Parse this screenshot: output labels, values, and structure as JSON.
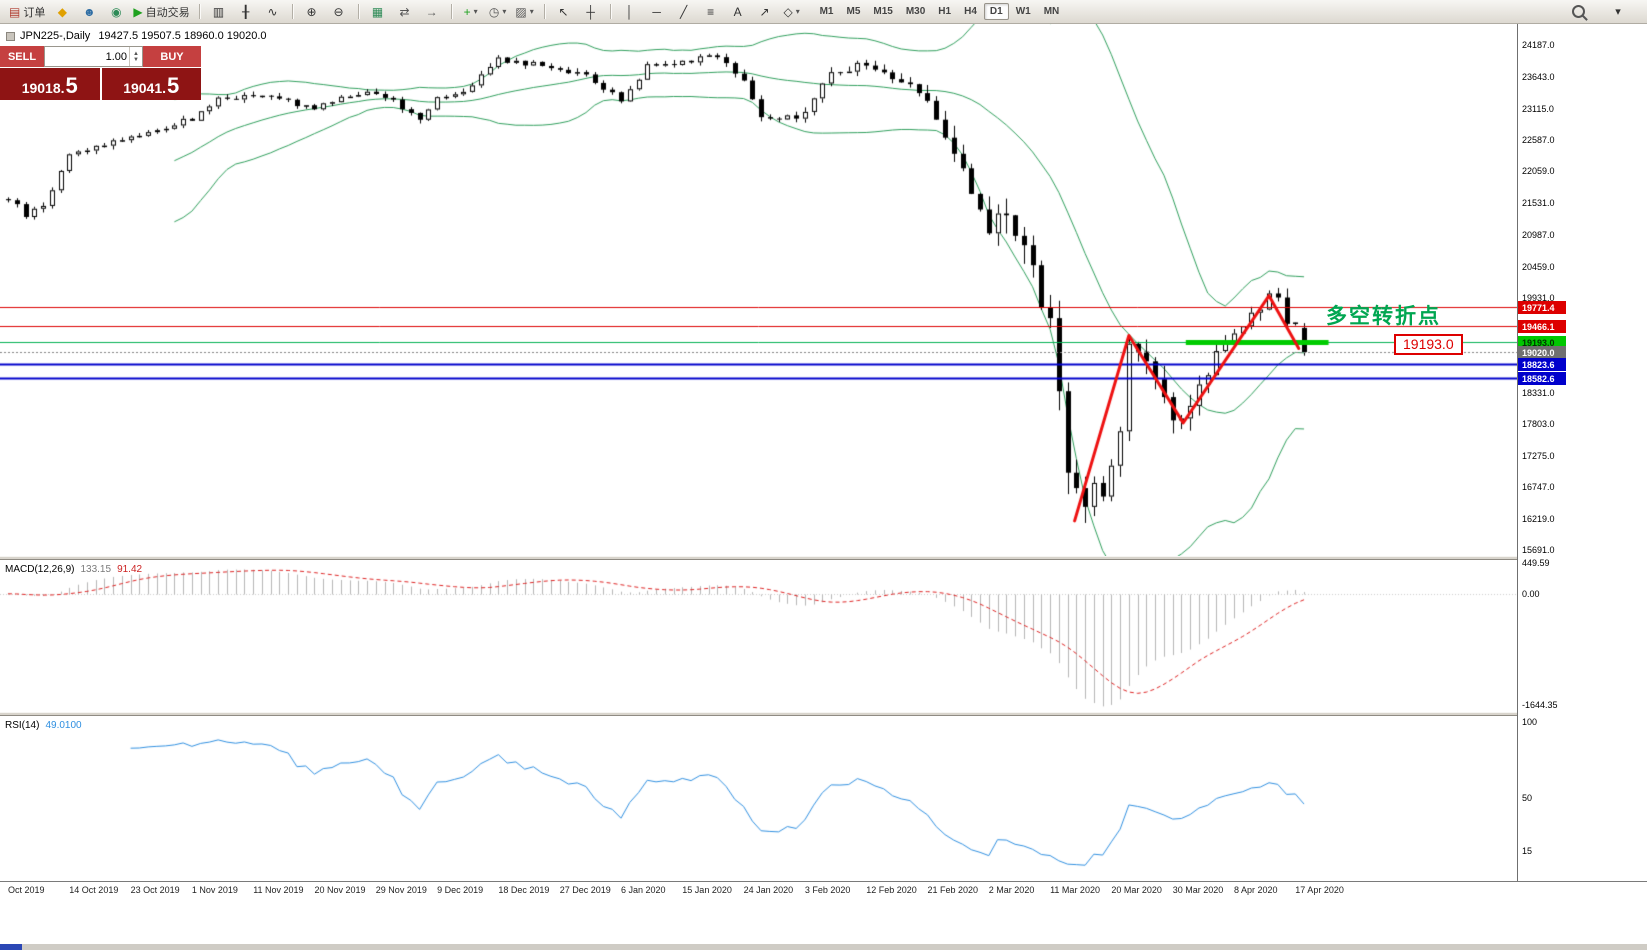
{
  "toolbar": {
    "groups": [
      {
        "items": [
          {
            "name": "new-order-button",
            "glyph": "▤",
            "color": "#b03a2e",
            "label": "订单"
          },
          {
            "name": "new-chart-button",
            "glyph": "◆",
            "color": "#e0a000"
          },
          {
            "name": "profiles-button",
            "glyph": "☻",
            "color": "#2e6da4"
          },
          {
            "name": "data-window-button",
            "glyph": "◉",
            "color": "#2e8b57"
          },
          {
            "name": "autotrading-button",
            "glyph": "▶",
            "color": "#1fa11f",
            "label": "自动交易"
          }
        ]
      },
      {
        "items": [
          {
            "name": "bar-chart-button",
            "glyph": "▥",
            "color": "#333333"
          },
          {
            "name": "candlestick-chart-button",
            "glyph": "╂",
            "color": "#333333"
          },
          {
            "name": "line-chart-button",
            "glyph": "∿",
            "color": "#333333"
          }
        ]
      },
      {
        "items": [
          {
            "name": "zoom-in-button",
            "glyph": "⊕",
            "color": "#333333"
          },
          {
            "name": "zoom-out-button",
            "glyph": "⊖",
            "color": "#333333"
          }
        ]
      },
      {
        "items": [
          {
            "name": "tile-windows-button",
            "glyph": "▦",
            "color": "#2e8b57"
          },
          {
            "name": "chart-shift-button",
            "glyph": "⇄",
            "color": "#555555"
          },
          {
            "name": "auto-scroll-button",
            "glyph": "→",
            "color": "#555555"
          }
        ]
      },
      {
        "items": [
          {
            "name": "indicators-button",
            "glyph": "+",
            "color": "#1fa11f",
            "dropdown": true
          },
          {
            "name": "periods-button",
            "glyph": "◷",
            "color": "#555555",
            "dropdown": true
          },
          {
            "name": "templates-button",
            "glyph": "▨",
            "color": "#555555",
            "dropdown": true
          }
        ]
      },
      {
        "items": [
          {
            "name": "cursor-button",
            "glyph": "↖",
            "color": "#333333"
          },
          {
            "name": "crosshair-button",
            "glyph": "┼",
            "color": "#333333"
          }
        ]
      },
      {
        "items": [
          {
            "name": "vertical-line-button",
            "glyph": "│",
            "color": "#333333"
          },
          {
            "name": "horizontal-line-button",
            "glyph": "─",
            "color": "#333333"
          },
          {
            "name": "trendline-button",
            "glyph": "╱",
            "color": "#333333"
          },
          {
            "name": "fibonacci-button",
            "glyph": "≡",
            "color": "#333333"
          },
          {
            "name": "text-button",
            "glyph": "A",
            "color": "#333333"
          },
          {
            "name": "arrow-object-button",
            "glyph": "↗",
            "color": "#333333"
          },
          {
            "name": "shapes-button",
            "glyph": "◇",
            "color": "#333333",
            "dropdown": true
          }
        ]
      }
    ],
    "timeframes": {
      "items": [
        "M1",
        "M5",
        "M15",
        "M30",
        "H1",
        "H4",
        "D1",
        "W1",
        "MN"
      ],
      "active": "D1"
    },
    "right_icons": [
      {
        "name": "search-button",
        "type": "search"
      },
      {
        "name": "toolbar-overflow-button",
        "glyph": "▾"
      }
    ]
  },
  "chart": {
    "title": {
      "symbol": "JPN225-,Daily",
      "ohlc": "19427.5 19507.5 18960.0 19020.0"
    },
    "trade_panel": {
      "sell_label": "SELL",
      "buy_label": "BUY",
      "lot": "1.00",
      "sell_price": {
        "main": "19018.",
        "pip": "5"
      },
      "buy_price": {
        "main": "19041.",
        "pip": "5"
      }
    },
    "annotation": {
      "text": "多空转折点",
      "color": "#00a651"
    },
    "price_callout": "19193.0",
    "macd_label": {
      "name": "MACD(12,26,9)",
      "value1": "133.15",
      "value2": "91.42"
    },
    "rsi_label": {
      "name": "RSI(14)",
      "value": "49.0100"
    }
  },
  "chart_data": {
    "type": "candlestick",
    "symbol": "JPN225",
    "timeframe": "Daily",
    "last_candle_ohlc": [
      19427.5,
      19507.5,
      18960.0,
      19020.0
    ],
    "main": {
      "ylim": [
        15590,
        24540
      ],
      "num_candles": 149,
      "x0": 8,
      "dx": 8.757,
      "candle_width": 5,
      "bull_color": "#ffffff",
      "bear_color": "#000000",
      "outline_color": "#000000",
      "close_anchors": [
        [
          0,
          21600
        ],
        [
          2,
          21320
        ],
        [
          4,
          21480
        ],
        [
          7,
          22350
        ],
        [
          10,
          22480
        ],
        [
          14,
          22650
        ],
        [
          18,
          22800
        ],
        [
          21,
          22950
        ],
        [
          24,
          23280
        ],
        [
          28,
          23330
        ],
        [
          32,
          23260
        ],
        [
          35,
          23080
        ],
        [
          38,
          23330
        ],
        [
          42,
          23400
        ],
        [
          45,
          23150
        ],
        [
          47,
          22950
        ],
        [
          49,
          23330
        ],
        [
          52,
          23420
        ],
        [
          56,
          23950
        ],
        [
          59,
          23880
        ],
        [
          63,
          23800
        ],
        [
          66,
          23650
        ],
        [
          70,
          23250
        ],
        [
          73,
          23850
        ],
        [
          77,
          23900
        ],
        [
          80,
          24040
        ],
        [
          82,
          23900
        ],
        [
          84,
          23600
        ],
        [
          86,
          22950
        ],
        [
          88,
          22900
        ],
        [
          91,
          23050
        ],
        [
          94,
          23750
        ],
        [
          98,
          23850
        ],
        [
          101,
          23650
        ],
        [
          105,
          23350
        ],
        [
          107,
          22600
        ],
        [
          109,
          22000
        ],
        [
          111,
          21250
        ],
        [
          112,
          21100
        ],
        [
          114,
          21480
        ],
        [
          116,
          20700
        ],
        [
          118,
          19900
        ],
        [
          119,
          19400
        ],
        [
          120,
          18300
        ],
        [
          121,
          17200
        ],
        [
          122,
          16600
        ],
        [
          123,
          16350
        ],
        [
          124,
          16800
        ],
        [
          125,
          16550
        ],
        [
          126,
          17100
        ],
        [
          127,
          17900
        ],
        [
          128,
          19250
        ],
        [
          129,
          19050
        ],
        [
          130,
          18700
        ],
        [
          131,
          18400
        ],
        [
          132,
          18150
        ],
        [
          133,
          17980
        ],
        [
          134,
          17850
        ],
        [
          135,
          18250
        ],
        [
          136,
          18450
        ],
        [
          137,
          18700
        ],
        [
          139,
          19100
        ],
        [
          141,
          19400
        ],
        [
          143,
          19750
        ],
        [
          144,
          19940
        ],
        [
          145,
          19820
        ],
        [
          146,
          19600
        ],
        [
          147,
          19430
        ],
        [
          148,
          19020
        ]
      ],
      "vol_anchors": [
        [
          0,
          130
        ],
        [
          30,
          110
        ],
        [
          60,
          120
        ],
        [
          90,
          140
        ],
        [
          103,
          200
        ],
        [
          108,
          420
        ],
        [
          114,
          560
        ],
        [
          119,
          700
        ],
        [
          124,
          650
        ],
        [
          129,
          520
        ],
        [
          134,
          400
        ],
        [
          140,
          330
        ],
        [
          148,
          280
        ]
      ],
      "bollinger": {
        "period": 20,
        "deviation": 2,
        "color": "#2e9e5b"
      },
      "axis_ticks": [
        24187,
        23643,
        23115,
        22587,
        22059,
        21531,
        20987,
        20459,
        19931,
        18331,
        17803,
        17275,
        16747,
        16219,
        15691
      ],
      "levels": [
        {
          "value": 19771.4,
          "color": "#dd0000",
          "width": 1
        },
        {
          "value": 19466.1,
          "color": "#dd0000",
          "width": 1
        },
        {
          "value": 19193.0,
          "color": "#00b050",
          "width": 1
        },
        {
          "value": 19020.0,
          "color": "#808080",
          "width": 1,
          "dash": [
            2,
            2
          ]
        },
        {
          "value": 18823.6,
          "color": "#0000cc",
          "width": 2
        },
        {
          "value": 18582.6,
          "color": "#0000cc",
          "width": 2
        }
      ],
      "tags": [
        {
          "text": "19771.4",
          "value": 19771.4,
          "bg": "#dd0000",
          "fg": "#ffffff"
        },
        {
          "text": "19466.1",
          "value": 19466.1,
          "bg": "#dd0000",
          "fg": "#ffffff"
        },
        {
          "text": "19193.0",
          "value": 19193.0,
          "bg": "#00c800",
          "fg": "#003300"
        },
        {
          "text": "19020.0",
          "value": 19020.0,
          "bg": "#707070",
          "fg": "#ffffff"
        },
        {
          "text": "18823.6",
          "value": 18823.6,
          "bg": "#0000cc",
          "fg": "#ffffff"
        },
        {
          "text": "18582.6",
          "value": 18582.6,
          "bg": "#0000cc",
          "fg": "#ffffff"
        }
      ],
      "green_segment": {
        "from_day": 134.5,
        "to_day": 150.8,
        "price": 19193,
        "color": "#00cc00",
        "width": 5
      },
      "zigzag": {
        "color": "#ee1111",
        "width": 3,
        "points": [
          [
            121.8,
            16180
          ],
          [
            128,
            19300
          ],
          [
            134.2,
            17830
          ],
          [
            144,
            19970
          ],
          [
            147.4,
            19080
          ]
        ]
      }
    },
    "macd": {
      "periods": [
        12,
        26,
        9
      ],
      "ylim": [
        -1750,
        500
      ],
      "axis_ticks": [
        449.59,
        0.0,
        -1644.35
      ],
      "bar_color": "#b6b6b6",
      "signal_color": "#dd2222"
    },
    "rsi": {
      "period": 14,
      "ylim": [
        0,
        100
      ],
      "axis_ticks": [
        100,
        50,
        15
      ],
      "line_color": "#2f8fe0"
    },
    "date_labels": [
      "Oct 2019",
      "14 Oct 2019",
      "23 Oct 2019",
      "1 Nov 2019",
      "11 Nov 2019",
      "20 Nov 2019",
      "29 Nov 2019",
      "9 Dec 2019",
      "18 Dec 2019",
      "27 Dec 2019",
      "6 Jan 2020",
      "15 Jan 2020",
      "24 Jan 2020",
      "3 Feb 2020",
      "12 Feb 2020",
      "21 Feb 2020",
      "2 Mar 2020",
      "11 Mar 2020",
      "20 Mar 2020",
      "30 Mar 2020",
      "8 Apr 2020",
      "17 Apr 2020"
    ],
    "label_x0": 8,
    "label_px_spacing": 61.3,
    "label_spacing_days": 7
  }
}
